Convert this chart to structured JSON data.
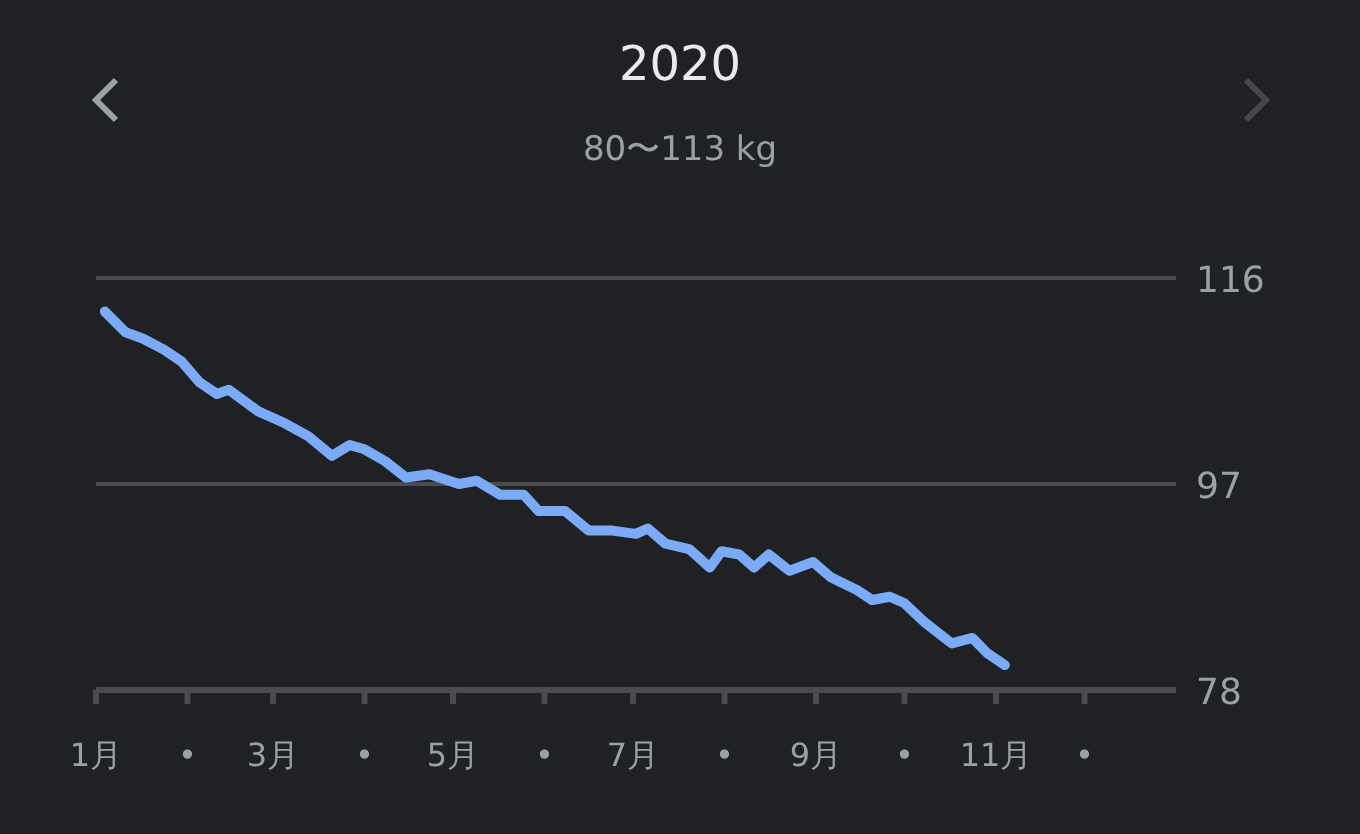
{
  "chart_data": {
    "type": "line",
    "title": "2020",
    "subtitle": "80〜113 kg",
    "x": [
      "2020-01-04",
      "2020-01-11",
      "2020-01-17",
      "2020-01-24",
      "2020-01-30",
      "2020-02-05",
      "2020-02-11",
      "2020-02-15",
      "2020-02-25",
      "2020-03-05",
      "2020-03-13",
      "2020-03-21",
      "2020-03-27",
      "2020-04-01",
      "2020-04-08",
      "2020-04-15",
      "2020-04-23",
      "2020-05-03",
      "2020-05-09",
      "2020-05-17",
      "2020-05-25",
      "2020-05-30",
      "2020-06-08",
      "2020-06-16",
      "2020-06-24",
      "2020-07-02",
      "2020-07-06",
      "2020-07-12",
      "2020-07-20",
      "2020-07-27",
      "2020-07-31",
      "2020-08-06",
      "2020-08-11",
      "2020-08-16",
      "2020-08-23",
      "2020-08-31",
      "2020-09-06",
      "2020-09-15",
      "2020-09-20",
      "2020-09-26",
      "2020-10-01",
      "2020-10-08",
      "2020-10-17",
      "2020-10-24",
      "2020-10-29",
      "2020-11-04"
    ],
    "series": [
      {
        "color": "#7baaf7",
        "values": [
          112.9,
          111.0,
          110.4,
          109.4,
          108.3,
          106.4,
          105.3,
          105.7,
          103.7,
          102.6,
          101.4,
          99.6,
          100.6,
          100.2,
          99.1,
          97.6,
          97.9,
          97.0,
          97.3,
          96.0,
          96.0,
          94.5,
          94.5,
          92.7,
          92.7,
          92.4,
          92.9,
          91.5,
          91.0,
          89.3,
          90.8,
          90.5,
          89.3,
          90.5,
          89.0,
          89.8,
          88.4,
          87.2,
          86.3,
          86.6,
          86.0,
          84.2,
          82.3,
          82.8,
          81.4,
          80.3
        ]
      }
    ],
    "xlim": [
      "2020-01-01",
      "2021-01-01"
    ],
    "xticks": [
      {
        "value": "2020-01",
        "label": "1月"
      },
      {
        "value": "2020-02",
        "label": "•"
      },
      {
        "value": "2020-03",
        "label": "3月"
      },
      {
        "value": "2020-04",
        "label": "•"
      },
      {
        "value": "2020-05",
        "label": "5月"
      },
      {
        "value": "2020-06",
        "label": "•"
      },
      {
        "value": "2020-07",
        "label": "7月"
      },
      {
        "value": "2020-08",
        "label": "•"
      },
      {
        "value": "2020-09",
        "label": "9月"
      },
      {
        "value": "2020-10",
        "label": "•"
      },
      {
        "value": "2020-11",
        "label": "11月"
      },
      {
        "value": "2020-12",
        "label": "•"
      }
    ],
    "ylim": [
      78,
      116
    ],
    "yticks": [
      78,
      97,
      116
    ],
    "grid": "y",
    "marker": "none",
    "line_style": "solid"
  }
}
